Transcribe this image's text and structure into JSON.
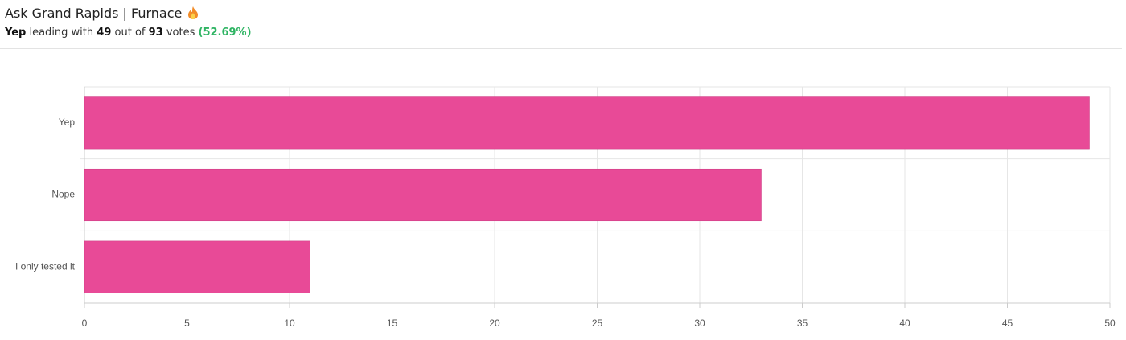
{
  "header": {
    "title": "Ask Grand Rapids | Furnace",
    "subtitle": {
      "leader": "Yep",
      "text1": "leading with",
      "count": 49,
      "text2": "out of",
      "total": 93,
      "text3": "votes",
      "percent": "(52.69%)"
    }
  },
  "chart_data": {
    "type": "bar",
    "orientation": "horizontal",
    "categories": [
      "Yep",
      "Nope",
      "I only tested it"
    ],
    "values": [
      49,
      33,
      11
    ],
    "color": "#e84a97",
    "xlim": [
      0,
      50
    ],
    "xticks": [
      0,
      5,
      10,
      15,
      20,
      25,
      30,
      35,
      40,
      45,
      50
    ],
    "grid": true
  }
}
